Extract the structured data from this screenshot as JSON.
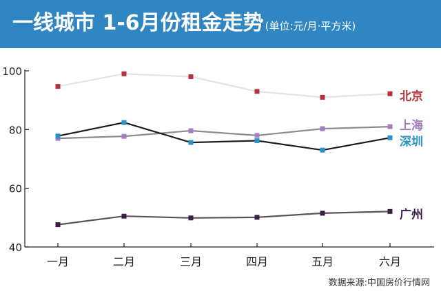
{
  "header": {
    "title": "一线城市 1-6月份租金走势",
    "subtitle": "(单位:元/月·平方米)"
  },
  "footer": {
    "source": "数据来源:中国房价行情网"
  },
  "chart_data": {
    "type": "line",
    "title": "一线城市 1-6月份租金走势",
    "subtitle": "(单位:元/月·平方米)",
    "categories": [
      "一月",
      "二月",
      "三月",
      "四月",
      "五月",
      "六月"
    ],
    "y_ticks": [
      40,
      60,
      80,
      100
    ],
    "ylim": [
      40,
      100
    ],
    "grid": false,
    "legend": "right-end labels",
    "series": [
      {
        "name": "北京",
        "values": [
          94.7,
          99,
          98,
          93,
          91,
          92.2
        ],
        "line_color": "#e3e3e3",
        "marker_color": "#b5333d",
        "label_color": "#b5333d"
      },
      {
        "name": "上海",
        "values": [
          77,
          77.7,
          79.6,
          78,
          80.3,
          81
        ],
        "line_color": "#8c8c8c",
        "marker_color": "#a47cc0",
        "label_color": "#a47cc0"
      },
      {
        "name": "深圳",
        "values": [
          77.8,
          82.4,
          75.6,
          76.2,
          73,
          77.2
        ],
        "line_color": "#1c1c1c",
        "marker_color": "#2a93c6",
        "label_color": "#2a93c6"
      },
      {
        "name": "广州",
        "values": [
          47.6,
          50.5,
          49.9,
          50.1,
          51.5,
          52.1
        ],
        "line_color": "#555555",
        "marker_color": "#3a1f42",
        "label_color": "#3a1f42"
      }
    ]
  }
}
